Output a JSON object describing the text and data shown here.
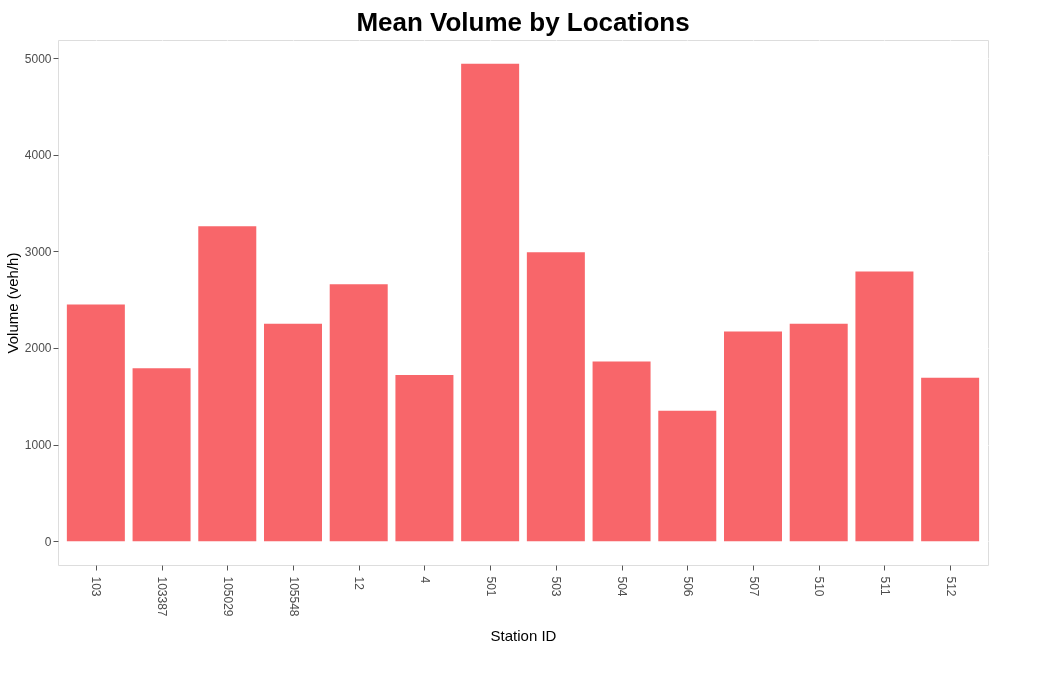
{
  "chart_data": {
    "type": "bar",
    "title": "Mean Volume by Locations",
    "xlabel": "Station ID",
    "ylabel": "Volume (veh/h)",
    "categories": [
      "103",
      "103387",
      "105029",
      "105548",
      "12",
      "4",
      "501",
      "503",
      "504",
      "506",
      "507",
      "510",
      "511",
      "512"
    ],
    "values": [
      2450,
      1790,
      3260,
      2250,
      2660,
      1720,
      4940,
      2990,
      1860,
      1350,
      2170,
      2250,
      2790,
      1690
    ],
    "color": "#f8666a",
    "ylim": [
      -247,
      5187
    ],
    "yticks": [
      0,
      1000,
      2000,
      3000,
      4000,
      5000
    ],
    "grid": true
  }
}
